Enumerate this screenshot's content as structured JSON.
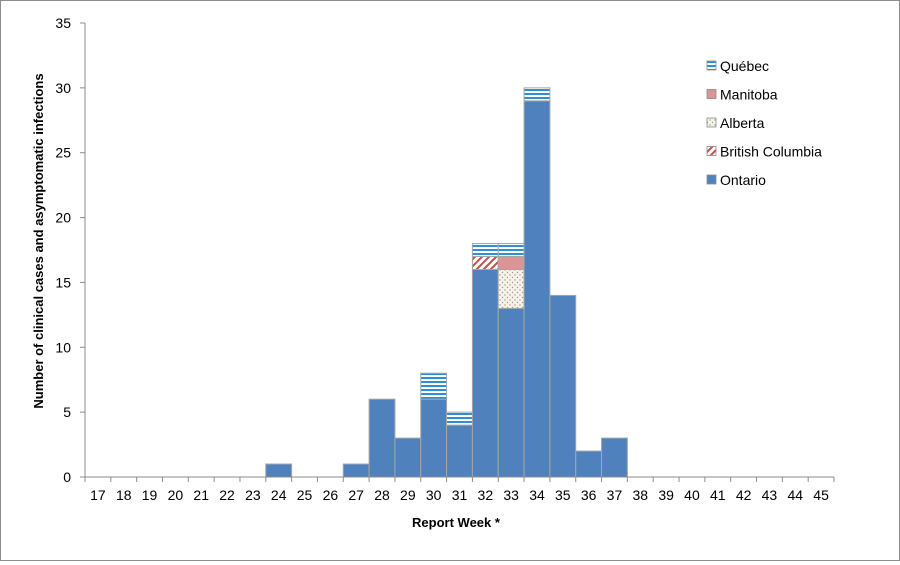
{
  "chart_data": {
    "type": "bar",
    "stacked": true,
    "title": "",
    "xlabel": "Report Week *",
    "ylabel": "Number of clinical cases and asymptomatic infections",
    "ylim": [
      0,
      35
    ],
    "yticks": [
      "0",
      "5",
      "10",
      "15",
      "20",
      "25",
      "30",
      "35"
    ],
    "grid": false,
    "legend_position": "top-right",
    "categories": [
      "17",
      "18",
      "19",
      "20",
      "21",
      "22",
      "23",
      "24",
      "25",
      "26",
      "27",
      "28",
      "29",
      "30",
      "31",
      "32",
      "33",
      "34",
      "35",
      "36",
      "37",
      "38",
      "39",
      "40",
      "41",
      "42",
      "43",
      "44",
      "45"
    ],
    "series": [
      {
        "name": "Ontario",
        "color": "#4f81bd",
        "pattern": "solid",
        "values": [
          0,
          0,
          0,
          0,
          0,
          0,
          0,
          1,
          0,
          0,
          1,
          6,
          3,
          6,
          4,
          16,
          13,
          29,
          14,
          2,
          3,
          0,
          0,
          0,
          0,
          0,
          0,
          0,
          0
        ]
      },
      {
        "name": "British Columbia",
        "color": "#c0504d",
        "pattern": "diagonal-stripes",
        "values": [
          0,
          0,
          0,
          0,
          0,
          0,
          0,
          0,
          0,
          0,
          0,
          0,
          0,
          0,
          0,
          1,
          0,
          0,
          0,
          0,
          0,
          0,
          0,
          0,
          0,
          0,
          0,
          0,
          0
        ]
      },
      {
        "name": "Alberta",
        "color": "#c4bd97",
        "pattern": "dots",
        "values": [
          0,
          0,
          0,
          0,
          0,
          0,
          0,
          0,
          0,
          0,
          0,
          0,
          0,
          0,
          0,
          0,
          3,
          0,
          0,
          0,
          0,
          0,
          0,
          0,
          0,
          0,
          0,
          0,
          0
        ]
      },
      {
        "name": "Manitoba",
        "color": "#d99694",
        "pattern": "solid",
        "values": [
          0,
          0,
          0,
          0,
          0,
          0,
          0,
          0,
          0,
          0,
          0,
          0,
          0,
          0,
          0,
          0,
          1,
          0,
          0,
          0,
          0,
          0,
          0,
          0,
          0,
          0,
          0,
          0,
          0
        ]
      },
      {
        "name": "Québec",
        "color": "#2e8fd4",
        "pattern": "horizontal-stripes",
        "values": [
          0,
          0,
          0,
          0,
          0,
          0,
          0,
          0,
          0,
          0,
          0,
          0,
          0,
          2,
          1,
          1,
          1,
          1,
          0,
          0,
          0,
          0,
          0,
          0,
          0,
          0,
          0,
          0,
          0
        ]
      }
    ],
    "legend_order": [
      "Québec",
      "Manitoba",
      "Alberta",
      "British Columbia",
      "Ontario"
    ]
  }
}
